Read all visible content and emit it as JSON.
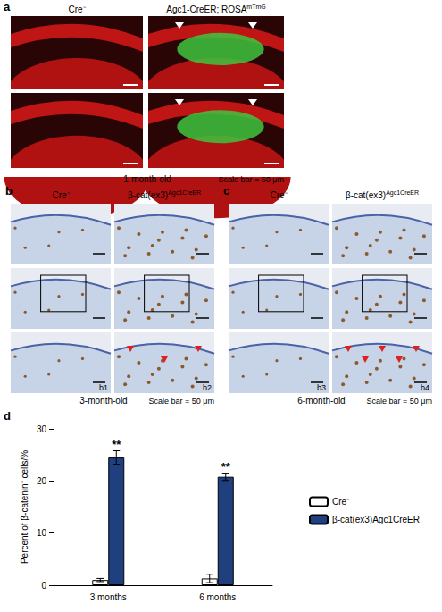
{
  "panels": [
    {
      "label": "a",
      "columns": [
        {
          "text": "Cre⁻"
        },
        {
          "text": "Agc1-CreER; ROSA",
          "sup": "mTmG"
        }
      ],
      "caption": "1-month-old",
      "scale_bar": "Scale bar = 50 μm"
    },
    {
      "label": "b",
      "columns": [
        {
          "text": "Cre⁻"
        },
        {
          "text": "β-cat(ex3)",
          "sup": "Agc1CreER"
        }
      ],
      "insets": [
        "b1",
        "b2"
      ],
      "caption": "3-month-old",
      "scale_bar": "Scale bar = 50 μm"
    },
    {
      "label": "c",
      "columns": [
        {
          "text": "Cre⁻"
        },
        {
          "text": "β-cat(ex3)",
          "sup": "Agc1CreER"
        }
      ],
      "insets": [
        "b3",
        "b4"
      ],
      "caption": "6-month-old",
      "scale_bar": "Scale bar = 50 μm"
    }
  ],
  "chart_data": {
    "label": "d",
    "type": "bar",
    "categories": [
      "3 months",
      "6 months"
    ],
    "ylabel": "Percent of β-catenin⁺ cells/%",
    "ylim": [
      0,
      30
    ],
    "yticks": [
      0,
      10,
      20,
      30
    ],
    "legend": "right",
    "series": [
      {
        "name": "Cre⁻",
        "color": "#ffffff",
        "values": [
          1.0,
          1.3
        ],
        "errors": [
          0.3,
          0.8
        ]
      },
      {
        "name": "β-cat(ex3)Agc1CreER",
        "color": "#1f3f7f",
        "values": [
          24.5,
          20.8
        ],
        "errors": [
          1.3,
          0.7
        ],
        "annotations": [
          "**",
          "**"
        ]
      }
    ]
  }
}
